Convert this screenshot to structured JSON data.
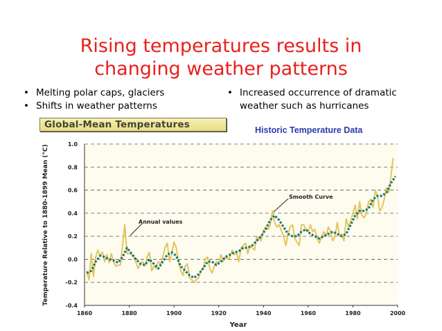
{
  "slide": {
    "title_line1": "Rising temperatures results in",
    "title_line2": "changing weather patterns",
    "bullets_left": [
      "Melting polar caps, glaciers",
      "Shifts in weather patterns"
    ],
    "bullets_right_line1": "Increased occurrence of dramatic",
    "bullets_right_line2": "weather such as hurricanes",
    "chart_banner": "Global-Mean Temperatures",
    "historic_label": "Historic Temperature Data"
  },
  "colors": {
    "title": "#e8201c",
    "annual": "#e6c35c",
    "smooth": "#1c7a72",
    "label_blue": "#2b3aa8"
  },
  "chart_data": {
    "type": "line",
    "title": "Global-Mean Temperatures",
    "xlabel": "Year",
    "ylabel": "Temperature Relative to 1880-1899 Mean (°C)",
    "xlim": [
      1860,
      2000
    ],
    "ylim": [
      -0.4,
      1.0
    ],
    "x_ticks": [
      "1860",
      "1880",
      "1900",
      "1920",
      "1940",
      "1960",
      "1980",
      "2000"
    ],
    "y_ticks": [
      "1.0",
      "0.8",
      "0.6",
      "0.4",
      "0.2",
      "0.0",
      "-0.2",
      "-0.4"
    ],
    "grid": "horizontal dashed",
    "annotations": [
      "Annual values",
      "Smooth Curve"
    ],
    "series": [
      {
        "name": "Annual values",
        "x": [
          1861,
          1862,
          1863,
          1864,
          1865,
          1866,
          1867,
          1868,
          1869,
          1870,
          1871,
          1872,
          1873,
          1874,
          1875,
          1876,
          1877,
          1878,
          1879,
          1880,
          1881,
          1882,
          1883,
          1884,
          1885,
          1886,
          1887,
          1888,
          1889,
          1890,
          1891,
          1892,
          1893,
          1894,
          1895,
          1896,
          1897,
          1898,
          1899,
          1900,
          1901,
          1902,
          1903,
          1904,
          1905,
          1906,
          1907,
          1908,
          1909,
          1910,
          1911,
          1912,
          1913,
          1914,
          1915,
          1916,
          1917,
          1918,
          1919,
          1920,
          1921,
          1922,
          1923,
          1924,
          1925,
          1926,
          1927,
          1928,
          1929,
          1930,
          1931,
          1932,
          1933,
          1934,
          1935,
          1936,
          1937,
          1938,
          1939,
          1940,
          1941,
          1942,
          1943,
          1944,
          1945,
          1946,
          1947,
          1948,
          1949,
          1950,
          1951,
          1952,
          1953,
          1954,
          1955,
          1956,
          1957,
          1958,
          1959,
          1960,
          1961,
          1962,
          1963,
          1964,
          1965,
          1966,
          1967,
          1968,
          1969,
          1970,
          1971,
          1972,
          1973,
          1974,
          1975,
          1976,
          1977,
          1978,
          1979,
          1980,
          1981,
          1982,
          1983,
          1984,
          1985,
          1986,
          1987,
          1988,
          1989,
          1990,
          1991,
          1992,
          1993,
          1994,
          1995,
          1996,
          1997,
          1998
        ],
        "values": [
          -0.1,
          -0.18,
          0.05,
          -0.15,
          0.02,
          0.08,
          0.03,
          0.06,
          -0.02,
          0.04,
          -0.03,
          0.05,
          -0.02,
          -0.06,
          -0.05,
          -0.05,
          0.12,
          0.3,
          0.05,
          0.05,
          0.04,
          0.02,
          -0.03,
          -0.08,
          -0.04,
          -0.02,
          -0.06,
          0.02,
          0.06,
          -0.1,
          -0.06,
          -0.08,
          -0.02,
          -0.04,
          0.02,
          0.1,
          0.14,
          -0.02,
          0.05,
          0.15,
          0.1,
          -0.02,
          -0.1,
          -0.14,
          -0.06,
          -0.04,
          -0.16,
          -0.18,
          -0.2,
          -0.18,
          -0.16,
          -0.1,
          -0.08,
          0.0,
          0.02,
          -0.08,
          -0.12,
          -0.06,
          -0.02,
          -0.03,
          0.04,
          -0.02,
          0.02,
          0.0,
          0.02,
          0.08,
          0.04,
          0.06,
          -0.02,
          0.1,
          0.12,
          0.14,
          0.05,
          0.12,
          0.1,
          0.08,
          0.2,
          0.18,
          0.16,
          0.25,
          0.28,
          0.26,
          0.3,
          0.42,
          0.32,
          0.28,
          0.3,
          0.25,
          0.2,
          0.12,
          0.22,
          0.28,
          0.3,
          0.18,
          0.15,
          0.12,
          0.3,
          0.3,
          0.26,
          0.24,
          0.3,
          0.24,
          0.26,
          0.18,
          0.14,
          0.2,
          0.24,
          0.2,
          0.28,
          0.24,
          0.16,
          0.2,
          0.32,
          0.2,
          0.22,
          0.16,
          0.35,
          0.28,
          0.33,
          0.4,
          0.47,
          0.35,
          0.5,
          0.38,
          0.36,
          0.4,
          0.5,
          0.52,
          0.45,
          0.6,
          0.55,
          0.42,
          0.45,
          0.52,
          0.62,
          0.58,
          0.72,
          0.88
        ]
      },
      {
        "name": "Smooth Curve",
        "x": [
          1861,
          1863,
          1865,
          1867,
          1869,
          1871,
          1873,
          1875,
          1877,
          1879,
          1881,
          1883,
          1885,
          1887,
          1889,
          1891,
          1893,
          1895,
          1897,
          1899,
          1901,
          1903,
          1905,
          1907,
          1909,
          1911,
          1913,
          1915,
          1917,
          1919,
          1921,
          1923,
          1925,
          1927,
          1929,
          1931,
          1933,
          1935,
          1937,
          1939,
          1941,
          1943,
          1945,
          1947,
          1949,
          1951,
          1953,
          1955,
          1957,
          1959,
          1961,
          1963,
          1965,
          1967,
          1969,
          1971,
          1973,
          1975,
          1977,
          1979,
          1981,
          1983,
          1985,
          1987,
          1989,
          1991,
          1993,
          1995,
          1997,
          1999
        ],
        "values": [
          -0.12,
          -0.1,
          -0.02,
          0.03,
          0.02,
          0.0,
          -0.01,
          -0.03,
          0.02,
          0.1,
          0.05,
          0.0,
          -0.04,
          -0.05,
          0.0,
          -0.04,
          -0.08,
          -0.02,
          0.04,
          0.06,
          0.03,
          -0.06,
          -0.1,
          -0.14,
          -0.16,
          -0.13,
          -0.08,
          -0.02,
          -0.02,
          -0.05,
          -0.02,
          0.02,
          0.04,
          0.06,
          0.07,
          0.1,
          0.1,
          0.12,
          0.16,
          0.2,
          0.26,
          0.34,
          0.38,
          0.34,
          0.28,
          0.22,
          0.2,
          0.2,
          0.24,
          0.26,
          0.22,
          0.2,
          0.18,
          0.2,
          0.22,
          0.24,
          0.22,
          0.2,
          0.22,
          0.3,
          0.38,
          0.42,
          0.42,
          0.44,
          0.52,
          0.55,
          0.55,
          0.58,
          0.66,
          0.72
        ]
      }
    ]
  }
}
